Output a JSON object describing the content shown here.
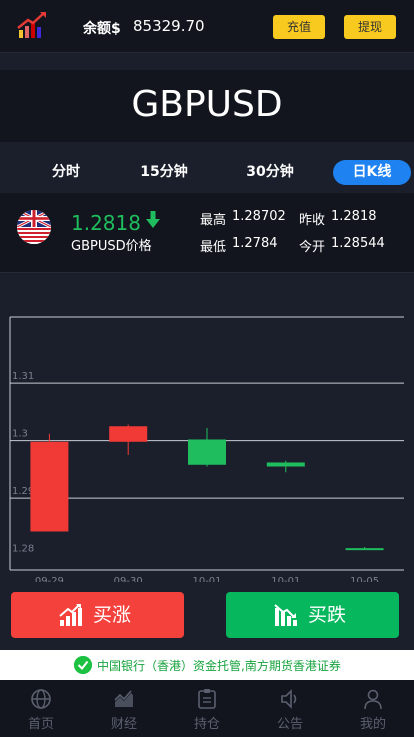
{
  "header": {
    "balance_label": "余额$",
    "balance_value": "85329.70",
    "recharge_label": "充值",
    "withdraw_label": "提现"
  },
  "symbol": "GBPUSD",
  "tabs": [
    {
      "label": "分时",
      "active": false
    },
    {
      "label": "15分钟",
      "active": false
    },
    {
      "label": "30分钟",
      "active": false
    },
    {
      "label": "日K线",
      "active": true
    }
  ],
  "quote": {
    "price": "1.2818",
    "name": "GBPUSD价格",
    "high_label": "最高",
    "high_value": "1.28702",
    "prev_close_label": "昨收",
    "prev_close_value": "1.2818",
    "low_label": "最低",
    "low_value": "1.2784",
    "open_label": "今开",
    "open_value": "1.28544",
    "direction": "down",
    "up_color": "#f13a35",
    "down_color": "#1fbd5d"
  },
  "chart_data": {
    "type": "candlestick",
    "y_ticks": [
      "1.31",
      "1.3",
      "1.29",
      "1.28"
    ],
    "ylim": [
      1.2775,
      1.3215
    ],
    "x_labels": [
      "09-29",
      "09-30",
      "10-01",
      "10-01",
      "10-05"
    ],
    "candles": [
      {
        "open": 1.2998,
        "close": 1.2842,
        "high": 1.3012,
        "low": 1.2842,
        "color": "up"
      },
      {
        "open": 1.2998,
        "close": 1.3025,
        "high": 1.3028,
        "low": 1.2975,
        "color": "up"
      },
      {
        "open": 1.2958,
        "close": 1.3002,
        "high": 1.3022,
        "low": 1.2955,
        "color": "down"
      },
      {
        "open": 1.2955,
        "close": 1.2962,
        "high": 1.2965,
        "low": 1.2945,
        "color": "down"
      },
      {
        "open": 1.2812,
        "close": 1.2813,
        "high": 1.2815,
        "low": 1.2811,
        "color": "down"
      }
    ]
  },
  "actions": {
    "buy_up_label": "买涨",
    "buy_down_label": "买跌"
  },
  "notice": "中国银行（香港）资金托管,南方期货香港证券",
  "nav": [
    {
      "label": "首页",
      "icon": "globe-icon"
    },
    {
      "label": "财经",
      "icon": "chart-icon"
    },
    {
      "label": "持仓",
      "icon": "clipboard-icon"
    },
    {
      "label": "公告",
      "icon": "speaker-icon"
    },
    {
      "label": "我的",
      "icon": "user-icon"
    }
  ]
}
